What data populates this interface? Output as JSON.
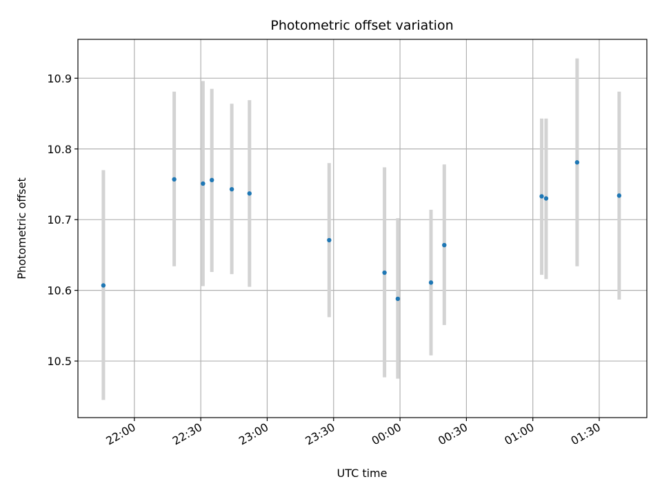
{
  "chart_data": {
    "type": "scatter",
    "title": "Photometric offset variation",
    "xlabel": "UTC time",
    "ylabel": "Photometric offset",
    "x_ticks": [
      "22:00",
      "22:30",
      "23:00",
      "23:30",
      "00:00",
      "00:30",
      "01:00",
      "01:30"
    ],
    "x_tick_minutes": [
      0,
      30,
      60,
      90,
      120,
      150,
      180,
      210
    ],
    "xlim_minutes": [
      -25.5,
      231.5
    ],
    "y_ticks": [
      "10.5",
      "10.6",
      "10.7",
      "10.8",
      "10.9"
    ],
    "y_tick_values": [
      10.5,
      10.6,
      10.7,
      10.8,
      10.9
    ],
    "ylim": [
      10.42,
      10.955
    ],
    "grid": true,
    "marker_color": "#1f77b4",
    "errorbar_color": "#d3d3d3",
    "points": [
      {
        "t": "21:46",
        "y": 10.607,
        "low": 10.445,
        "high": 10.77
      },
      {
        "t": "22:18",
        "y": 10.757,
        "low": 10.634,
        "high": 10.881
      },
      {
        "t": "22:31",
        "y": 10.751,
        "low": 10.606,
        "high": 10.896
      },
      {
        "t": "22:35",
        "y": 10.756,
        "low": 10.626,
        "high": 10.885
      },
      {
        "t": "22:44",
        "y": 10.743,
        "low": 10.623,
        "high": 10.864
      },
      {
        "t": "22:52",
        "y": 10.737,
        "low": 10.605,
        "high": 10.869
      },
      {
        "t": "23:28",
        "y": 10.671,
        "low": 10.562,
        "high": 10.78
      },
      {
        "t": "23:53",
        "y": 10.625,
        "low": 10.477,
        "high": 10.774
      },
      {
        "t": "23:59",
        "y": 10.588,
        "low": 10.475,
        "high": 10.702
      },
      {
        "t": "00:14",
        "y": 10.611,
        "low": 10.508,
        "high": 10.714
      },
      {
        "t": "00:20",
        "y": 10.664,
        "low": 10.551,
        "high": 10.778
      },
      {
        "t": "01:04",
        "y": 10.733,
        "low": 10.622,
        "high": 10.843
      },
      {
        "t": "01:06",
        "y": 10.73,
        "low": 10.616,
        "high": 10.843
      },
      {
        "t": "01:20",
        "y": 10.781,
        "low": 10.634,
        "high": 10.928
      },
      {
        "t": "01:39",
        "y": 10.734,
        "low": 10.587,
        "high": 10.881
      }
    ]
  }
}
